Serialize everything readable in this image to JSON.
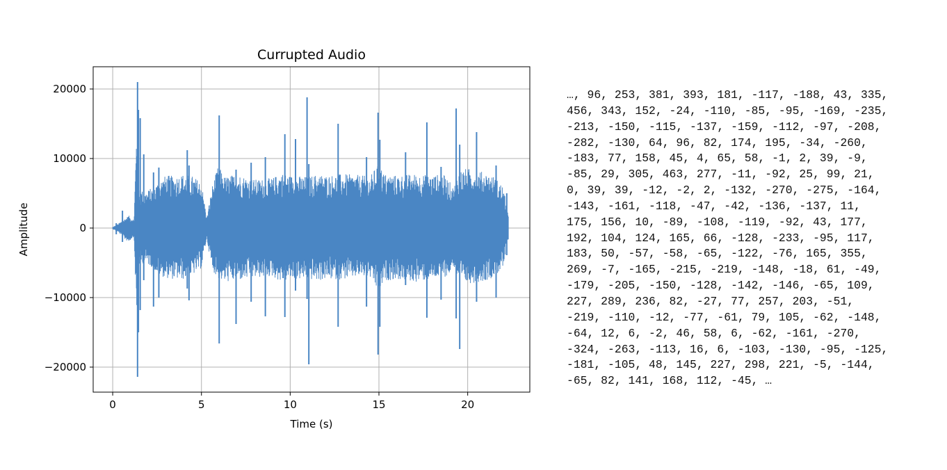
{
  "chart_data": {
    "type": "line",
    "title": "Currupted Audio",
    "xlabel": "Time (s)",
    "ylabel": "Amplitude",
    "xlim": [
      -1.1,
      23.5
    ],
    "ylim": [
      -23600,
      23200
    ],
    "x_ticks": [
      0,
      5,
      10,
      15,
      20
    ],
    "y_ticks": [
      -20000,
      -10000,
      0,
      10000,
      20000
    ],
    "x_tick_labels": [
      "0",
      "5",
      "10",
      "15",
      "20"
    ],
    "y_tick_labels": [
      "−20000",
      "−10000",
      "0",
      "10000",
      "20000"
    ],
    "grid": true,
    "legend": "none",
    "series": [
      {
        "color": "#4a86c4",
        "envelope": {
          "t": [
            0,
            0.25,
            0.4,
            0.6,
            0.9,
            1.2,
            1.35,
            1.45,
            1.6,
            1.8,
            2.2,
            2.6,
            3.0,
            3.5,
            4.0,
            4.5,
            5.0,
            5.3,
            5.6,
            5.95,
            6.3,
            7.0,
            8.0,
            9.0,
            9.5,
            10.0,
            11.0,
            11.6,
            12.0,
            13.0,
            14.0,
            14.5,
            15.0,
            15.3,
            16.0,
            17.0,
            18.0,
            18.6,
            18.9,
            19.2,
            19.5,
            20.0,
            21.0,
            21.5,
            22.0,
            22.3
          ],
          "pos": [
            150,
            500,
            800,
            1200,
            1800,
            1200,
            15000,
            6000,
            5500,
            5200,
            5800,
            6800,
            7600,
            7500,
            7800,
            7500,
            6600,
            1500,
            6000,
            9000,
            7400,
            7800,
            7000,
            7200,
            8000,
            7600,
            7400,
            7800,
            7600,
            7800,
            7600,
            7400,
            9500,
            7800,
            7600,
            7800,
            7600,
            7800,
            7000,
            5800,
            8300,
            8600,
            8000,
            7400,
            6000,
            1500
          ],
          "neg": [
            150,
            500,
            800,
            1500,
            2000,
            1200,
            13000,
            5500,
            5200,
            5000,
            5600,
            6800,
            7200,
            7400,
            7400,
            6800,
            5800,
            1500,
            6000,
            7300,
            7800,
            7600,
            7200,
            7000,
            7800,
            7400,
            7400,
            7600,
            7400,
            7400,
            7000,
            7200,
            9500,
            7600,
            7400,
            7800,
            7400,
            7000,
            7000,
            5500,
            7800,
            8000,
            7600,
            7000,
            5800,
            1500
          ]
        },
        "peaks": [
          [
            0.2,
            700,
            -900
          ],
          [
            0.55,
            2500,
            -2000
          ],
          [
            0.85,
            1500,
            -1100
          ],
          [
            1.4,
            21000,
            -21400
          ],
          [
            1.45,
            17000,
            -15000
          ],
          [
            1.55,
            15800,
            -11800
          ],
          [
            1.75,
            10600,
            -7500
          ],
          [
            2.3,
            8000,
            -11300
          ],
          [
            2.6,
            8700,
            -10000
          ],
          [
            4.2,
            11200,
            -8700
          ],
          [
            4.3,
            9000,
            -10400
          ],
          [
            6.0,
            16200,
            -16600
          ],
          [
            6.95,
            8400,
            -13800
          ],
          [
            7.8,
            9400,
            -10600
          ],
          [
            8.6,
            10200,
            -12700
          ],
          [
            9.7,
            13500,
            -12800
          ],
          [
            10.3,
            12800,
            -9000
          ],
          [
            10.95,
            18800,
            -10200
          ],
          [
            11.05,
            9200,
            -19600
          ],
          [
            12.7,
            15000,
            -14200
          ],
          [
            14.3,
            10200,
            -11300
          ],
          [
            14.95,
            16600,
            -18200
          ],
          [
            15.05,
            12700,
            -14200
          ],
          [
            16.5,
            10900,
            -8200
          ],
          [
            17.7,
            15200,
            -12900
          ],
          [
            18.5,
            8800,
            -10300
          ],
          [
            19.35,
            17200,
            -13000
          ],
          [
            19.55,
            12000,
            -17400
          ],
          [
            20.5,
            13800,
            -10600
          ],
          [
            21.6,
            9000,
            -10000
          ],
          [
            22.2,
            5000,
            -3900
          ]
        ]
      }
    ]
  },
  "samples": {
    "lines": [
      "…, 96, 253, 381, 393, 181, -117, -188, 43, 335,",
      "456, 343, 152, -24, -110, -85, -95, -169, -235,",
      "-213, -150, -115, -137, -159, -112, -97, -208,",
      "-282, -130, 64, 96, 82, 174, 195, -34, -260,",
      "-183, 77, 158, 45, 4, 65, 58, -1, 2, 39, -9,",
      "-85, 29, 305, 463, 277, -11, -92, 25, 99, 21,",
      "0, 39, 39, -12, -2, 2, -132, -270, -275, -164,",
      "-143, -161, -118, -47, -42, -136, -137, 11,",
      "175, 156, 10, -89, -108, -119, -92, 43, 177,",
      "192, 104, 124, 165, 66, -128, -233, -95, 117,",
      "183, 50, -57, -58, -65, -122, -76, 165, 355,",
      "269, -7, -165, -215, -219, -148, -18, 61, -49,",
      "-179, -205, -150, -128, -142, -146, -65, 109,",
      "227, 289, 236, 82, -27, 77, 257, 203, -51,",
      "-219, -110, -12, -77, -61, 79, 105, -62, -148,",
      "-64, 12, 6, -2, 46, 58, 6, -62, -161, -270,",
      "-324, -263, -113, 16, 6, -103, -130, -95, -125,",
      "-181, -105, 48, 145, 227, 298, 221, -5, -144,",
      "-65, 82, 141, 168, 112, -45, …"
    ]
  }
}
